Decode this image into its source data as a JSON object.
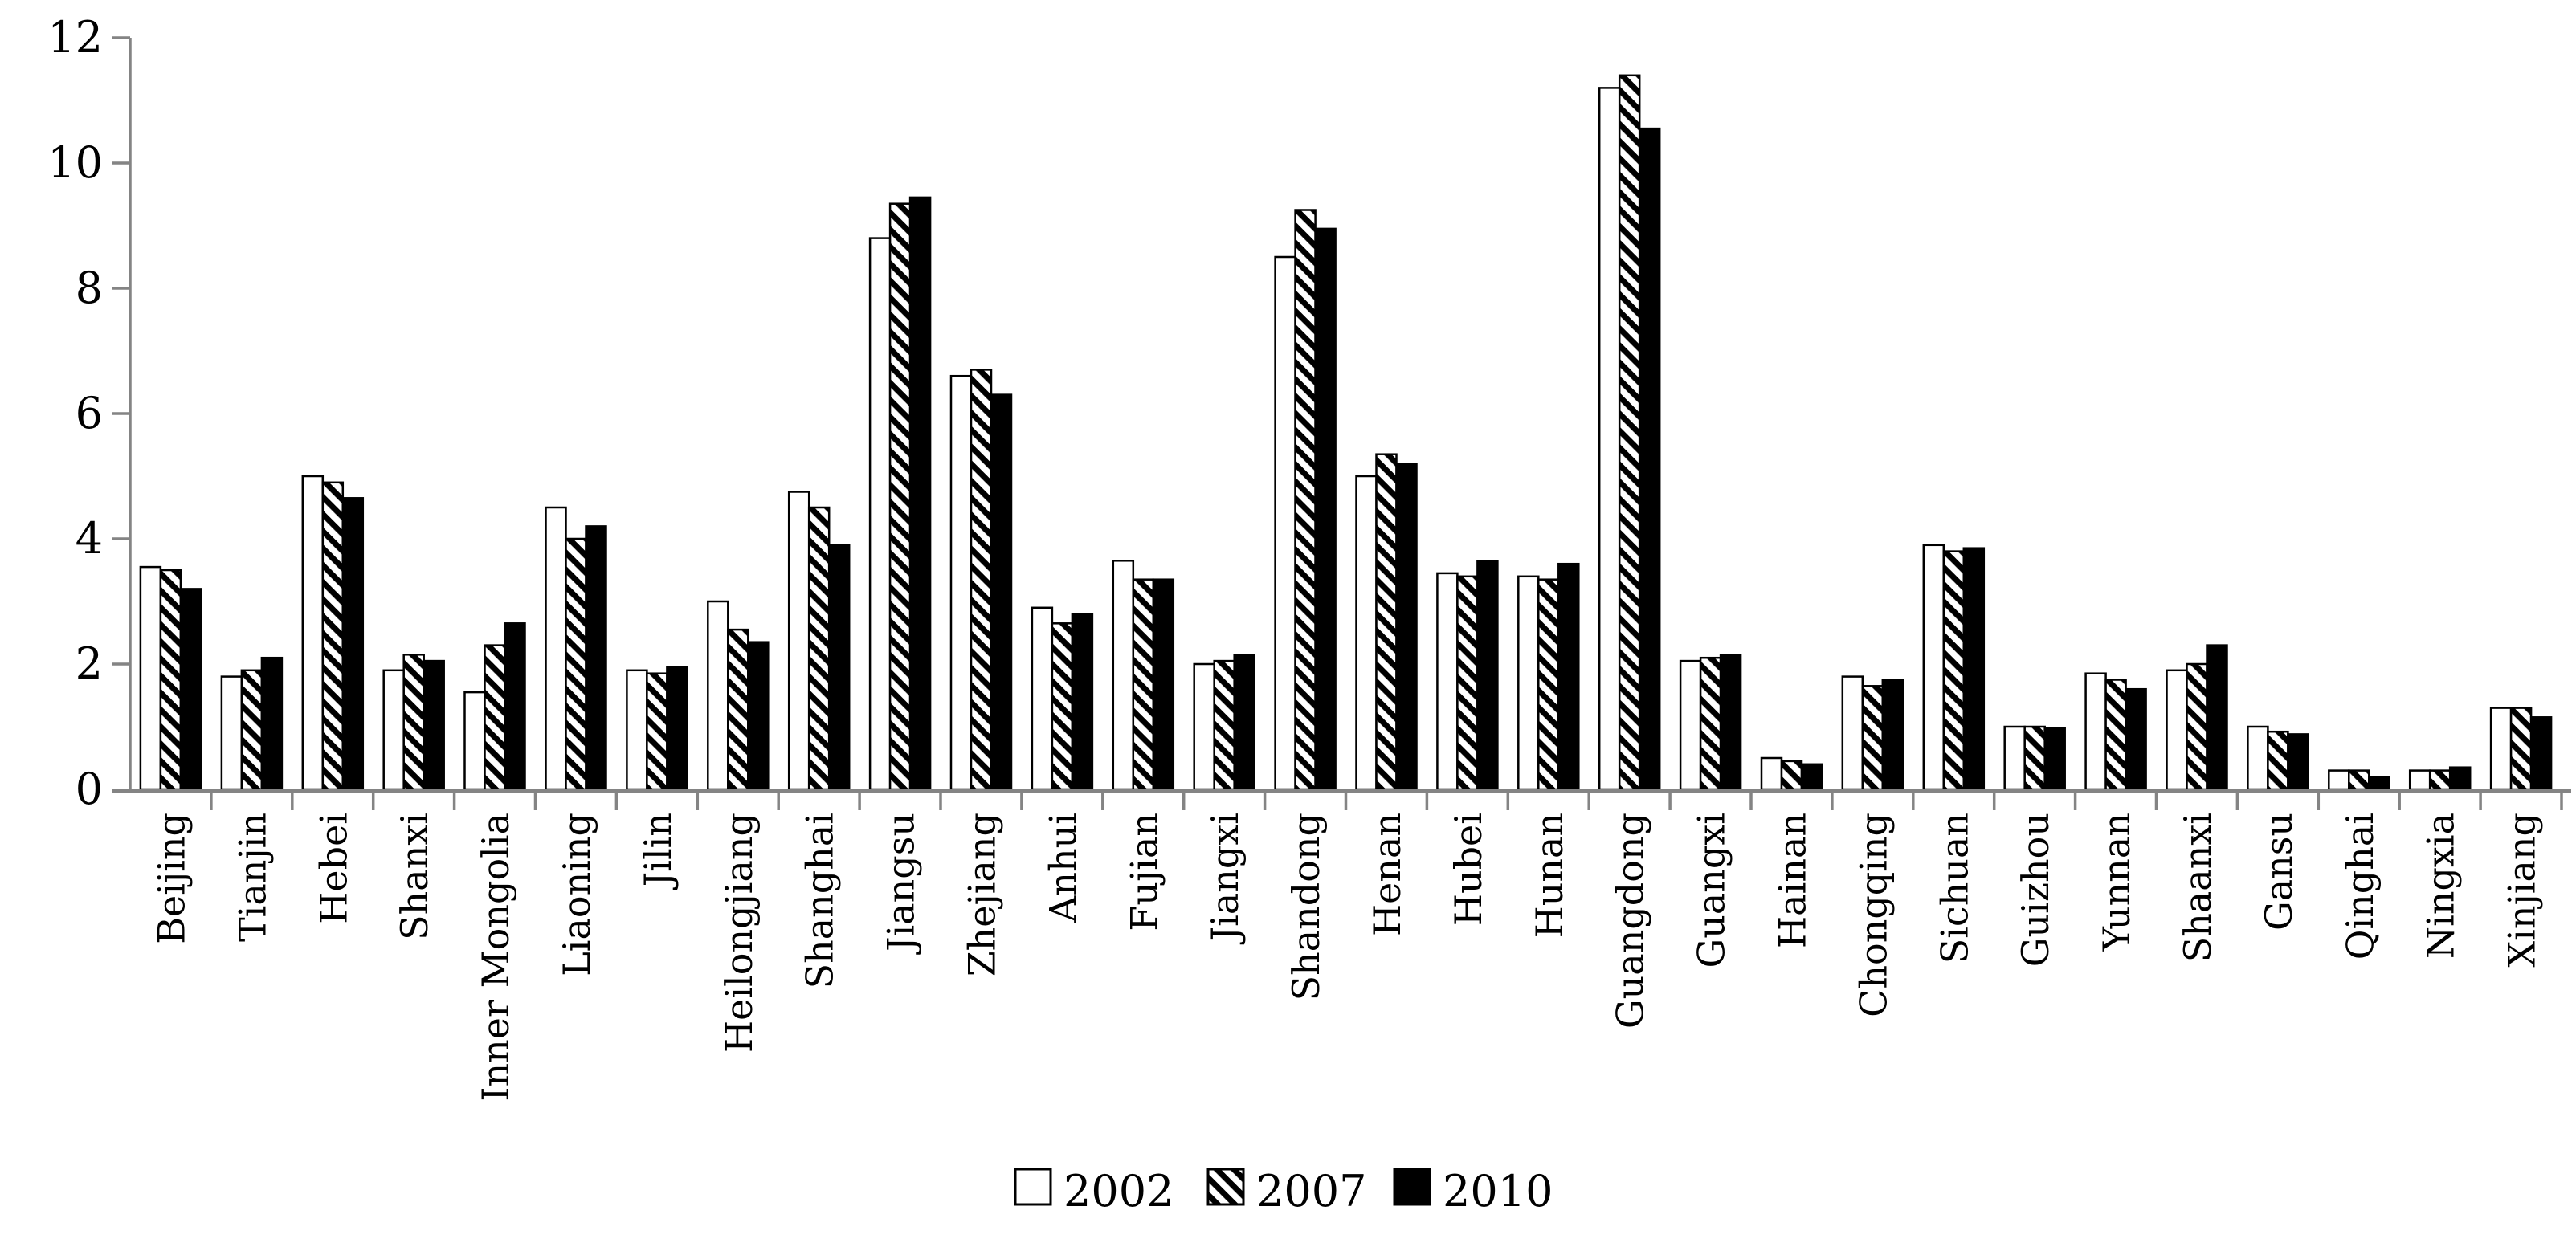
{
  "figure": {
    "background": "#ffffff",
    "axis_color": "#848484",
    "text_color": "#000000",
    "bar_outline_color": "#000000"
  },
  "legend": {
    "position": "bottom-center",
    "items": [
      {
        "label": "2002",
        "swatch": "white-outline-square"
      },
      {
        "label": "2007",
        "swatch": "diagonal-hatch-square"
      },
      {
        "label": "2010",
        "swatch": "solid-black-square"
      }
    ]
  },
  "chart_data": {
    "type": "bar",
    "title": "",
    "xlabel": "",
    "ylabel": "",
    "ylim": [
      0,
      12
    ],
    "yticks": [
      0,
      2,
      4,
      6,
      8,
      10,
      12
    ],
    "grid": false,
    "legend_position": "bottom-center",
    "bar_styles": [
      "white-outline",
      "diagonal-hatch",
      "solid-black"
    ],
    "categories": [
      "Beijing",
      "Tianjin",
      "Hebei",
      "Shanxi",
      "Inner Mongolia",
      "Liaoning",
      "Jilin",
      "Heilongjiang",
      "Shanghai",
      "Jiangsu",
      "Zhejiang",
      "Anhui",
      "Fujian",
      "Jiangxi",
      "Shandong",
      "Henan",
      "Hubei",
      "Hunan",
      "Guangdong",
      "Guangxi",
      "Hainan",
      "Chongqing",
      "Sichuan",
      "Guizhou",
      "Yunnan",
      "Shaanxi",
      "Gansu",
      "Qinghai",
      "Ningxia",
      "Xinjiang"
    ],
    "series": [
      {
        "name": "2002",
        "values": [
          3.55,
          1.8,
          5.0,
          1.9,
          1.55,
          4.5,
          1.9,
          3.0,
          4.75,
          8.8,
          6.6,
          2.9,
          3.65,
          2.0,
          8.5,
          5.0,
          3.45,
          3.4,
          11.2,
          2.05,
          0.5,
          1.8,
          3.9,
          1.0,
          1.85,
          1.9,
          1.0,
          0.3,
          0.3,
          1.3
        ]
      },
      {
        "name": "2007",
        "values": [
          3.5,
          1.9,
          4.9,
          2.15,
          2.3,
          4.0,
          1.85,
          2.55,
          4.5,
          9.35,
          6.7,
          2.65,
          3.35,
          2.05,
          9.25,
          5.35,
          3.4,
          3.35,
          11.4,
          2.1,
          0.45,
          1.65,
          3.8,
          1.0,
          1.75,
          2.0,
          0.92,
          0.3,
          0.3,
          1.3
        ]
      },
      {
        "name": "2010",
        "values": [
          3.2,
          2.1,
          4.65,
          2.05,
          2.65,
          4.2,
          1.95,
          2.35,
          3.9,
          9.45,
          6.3,
          2.8,
          3.35,
          2.15,
          8.95,
          5.2,
          3.65,
          3.6,
          10.55,
          2.15,
          0.4,
          1.75,
          3.85,
          0.98,
          1.6,
          2.3,
          0.88,
          0.2,
          0.35,
          1.15
        ]
      }
    ]
  }
}
